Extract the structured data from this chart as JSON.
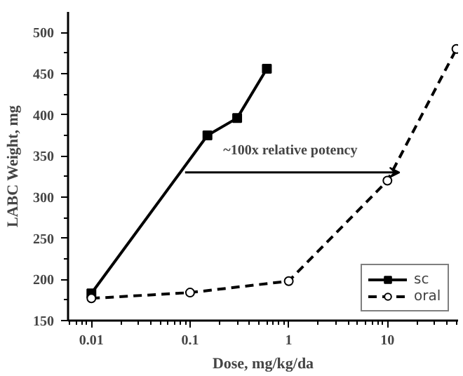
{
  "chart_data": {
    "type": "line",
    "xlabel": "Dose, mg/kg/da",
    "ylabel": "LABC Weight, mg",
    "log": "x",
    "xlim": [
      0.0058,
      52
    ],
    "ylim": [
      150,
      525
    ],
    "xticks": [
      0.01,
      0.1,
      1,
      10
    ],
    "yticks": [
      150,
      200,
      250,
      300,
      350,
      400,
      450,
      500
    ],
    "grid": false,
    "legend": "bottom right",
    "annotations": [
      "~100x relative potency"
    ],
    "series": [
      {
        "name": "sc",
        "color": "#000000",
        "marker": "square",
        "line_style": "solid",
        "x": [
          0.01,
          0.15,
          0.3,
          0.6
        ],
        "values": [
          183,
          375,
          396,
          456
        ]
      },
      {
        "name": "oral",
        "color": "#000000",
        "marker": "circle",
        "line_style": "dashed",
        "x": [
          0.01,
          0.1,
          1,
          10,
          50
        ],
        "values": [
          177,
          184,
          198,
          320,
          480
        ]
      }
    ]
  }
}
